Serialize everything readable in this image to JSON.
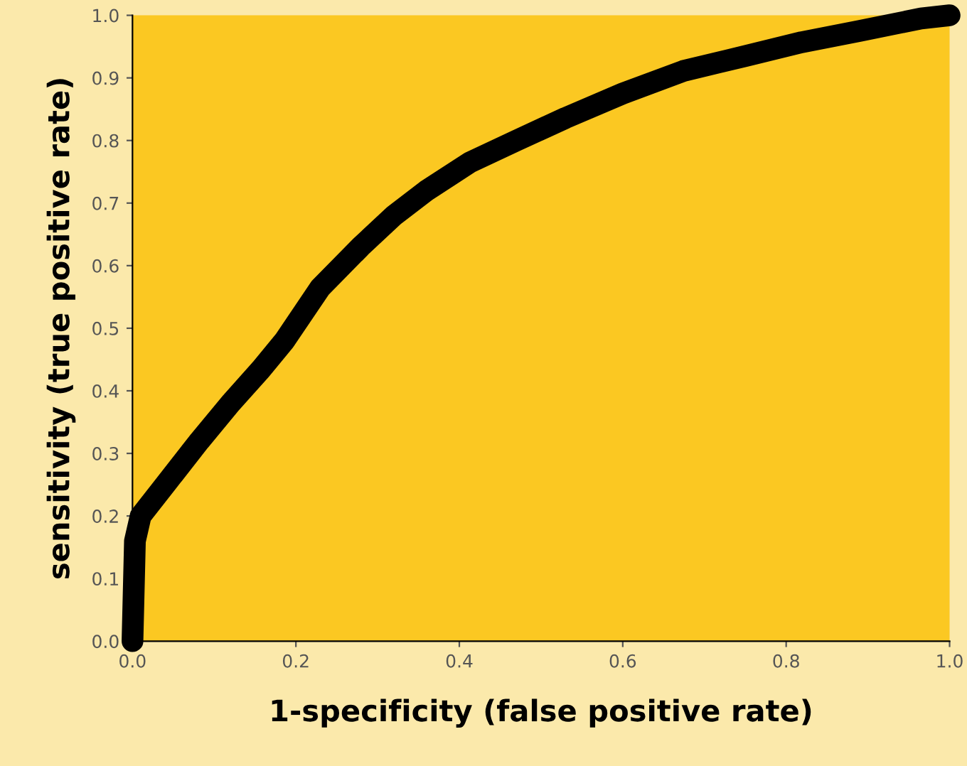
{
  "chart_data": {
    "type": "line",
    "xlabel": "1-specificity (false positive rate)",
    "ylabel": "sensitivity (true positive rate)",
    "x": [
      0,
      0.003,
      0.01,
      0.04,
      0.082,
      0.12,
      0.157,
      0.186,
      0.23,
      0.279,
      0.32,
      0.36,
      0.413,
      0.47,
      0.53,
      0.6,
      0.674,
      0.75,
      0.819,
      0.89,
      0.965,
      1.0
    ],
    "series": [
      {
        "color": "#000000",
        "values": [
          0,
          0.16,
          0.2,
          0.25,
          0.32,
          0.38,
          0.434,
          0.48,
          0.565,
          0.63,
          0.68,
          0.72,
          0.765,
          0.8,
          0.836,
          0.875,
          0.911,
          0.935,
          0.957,
          0.975,
          0.995,
          1.0
        ]
      }
    ],
    "xlim": [
      0,
      1
    ],
    "ylim": [
      0,
      1
    ],
    "xticks": [
      {
        "value": 0,
        "label": "0.0"
      },
      0.2,
      0.4,
      0.6,
      0.8,
      {
        "value": 1,
        "label": "1.0"
      }
    ],
    "yticks": [
      {
        "value": 0,
        "label": "0.0"
      },
      0.1,
      0.2,
      0.3,
      0.4,
      0.5,
      0.6,
      0.7,
      0.8,
      0.9,
      {
        "value": 1,
        "label": "1.0"
      }
    ],
    "grid": false,
    "line_style": "solid"
  }
}
